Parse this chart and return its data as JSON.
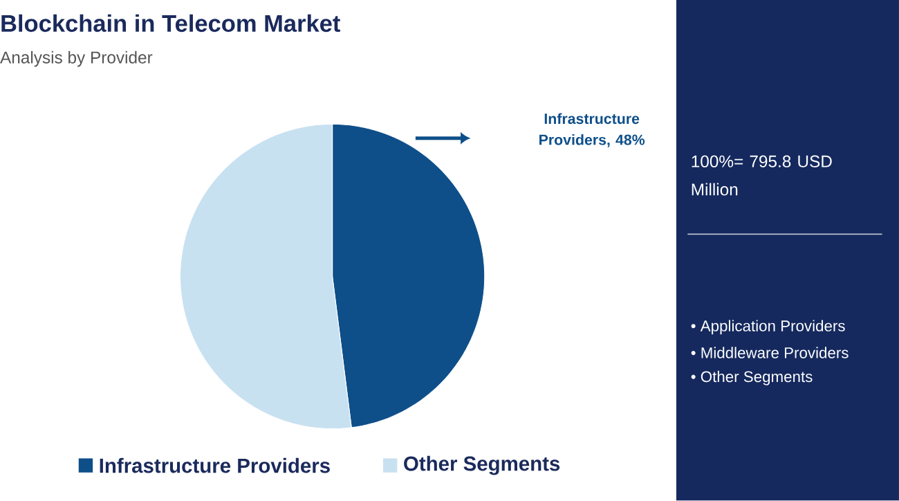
{
  "chart_data": {
    "type": "pie",
    "title": "Blockchain in Telecom Market",
    "subtitle": "Analysis by Provider",
    "categories": [
      "Infrastructure Providers",
      "Other Segments"
    ],
    "values": [
      48,
      52
    ],
    "colors": [
      "#0e4f8a",
      "#c8e1f1"
    ],
    "legend": "bottom",
    "annotations": [
      "Infrastructure Providers, 48%",
      "100%= 795.8 USD Million",
      "• Application Providers",
      "• Middleware Providers",
      "• Other Segments"
    ]
  }
}
